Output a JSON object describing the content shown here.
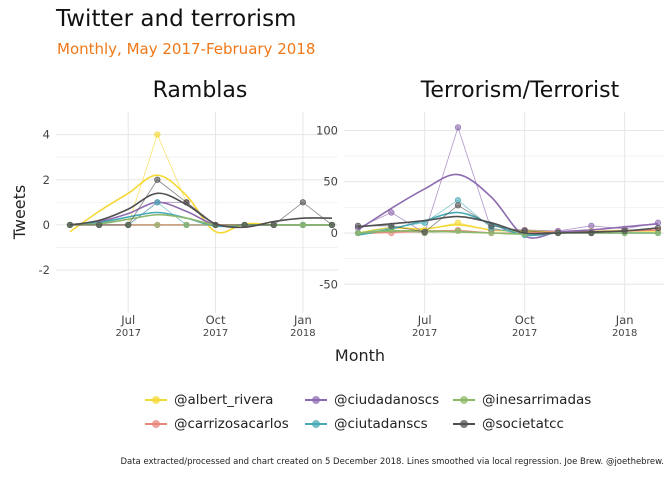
{
  "title": "Twitter and terrorism",
  "subtitle": "Monthly, May 2017-February 2018",
  "caption": "Data extracted/processed and chart created on 5 December 2018. Lines smoothed via local regression. Joe Brew. @joethebrew.",
  "colors": {
    "@albert_rivera": "#f5d832",
    "@carrizosacarlos": "#e8877d",
    "@ciudadanoscs": "#8e6bb0",
    "@ciutadanscs": "#46a9b5",
    "@inesarrimadas": "#8cb86a",
    "@societatcc": "#505050"
  },
  "legend": {
    "items": [
      {
        "label": "@albert_rivera",
        "color": "#f5d832"
      },
      {
        "label": "@ciudadanoscs",
        "color": "#8e6bb0"
      },
      {
        "label": "@inesarrimadas",
        "color": "#8cb86a"
      },
      {
        "label": "@carrizosacarlos",
        "color": "#e8877d"
      },
      {
        "label": "@ciutadanscs",
        "color": "#46a9b5"
      },
      {
        "label": "@societatcc",
        "color": "#505050"
      }
    ]
  },
  "chart_data": [
    {
      "type": "line",
      "title": "Ramblas",
      "xlabel": "Month",
      "ylabel": "Tweets",
      "x": [
        "2017-05",
        "2017-06",
        "2017-07",
        "2017-08",
        "2017-09",
        "2017-10",
        "2017-11",
        "2017-12",
        "2018-01",
        "2018-02"
      ],
      "xticks": [
        {
          "label": "Jul",
          "year": "2017",
          "x": "2017-07"
        },
        {
          "label": "Oct",
          "year": "2017",
          "x": "2017-10"
        },
        {
          "label": "Jan",
          "year": "2018",
          "x": "2018-01"
        }
      ],
      "yticks": [
        -2,
        0,
        2,
        4
      ],
      "ylim": [
        -3.9,
        5.0
      ],
      "grid": true,
      "series": [
        {
          "name": "@albert_rivera",
          "values": [
            0,
            0,
            0,
            4,
            1,
            0,
            0,
            0,
            0,
            0
          ],
          "smooth": [
            -0.3,
            0.6,
            1.4,
            2.2,
            1.3,
            -0.3,
            0.05,
            0.0,
            0.0,
            0.0
          ]
        },
        {
          "name": "@carrizosacarlos",
          "values": [
            0,
            0,
            0,
            0,
            0,
            0,
            0,
            0,
            0,
            0
          ],
          "smooth": [
            0,
            0,
            0,
            0,
            0,
            0,
            0,
            0,
            0,
            0
          ]
        },
        {
          "name": "@ciudadanoscs",
          "values": [
            0,
            0,
            0,
            1,
            1,
            0,
            0,
            0,
            0,
            0
          ],
          "smooth": [
            0.0,
            0.15,
            0.5,
            1.0,
            0.6,
            0.0,
            0.0,
            0.0,
            0.0,
            0.0
          ]
        },
        {
          "name": "@ciutadanscs",
          "values": [
            0,
            0,
            0,
            1,
            0,
            0,
            0,
            0,
            0,
            0
          ],
          "smooth": [
            0.0,
            0.1,
            0.35,
            0.55,
            0.3,
            -0.05,
            0.0,
            0.0,
            0.0,
            0.0
          ]
        },
        {
          "name": "@inesarrimadas",
          "values": [
            0,
            0,
            0,
            0,
            0,
            0,
            0,
            0,
            0,
            0
          ],
          "smooth": [
            0.0,
            0.05,
            0.25,
            0.45,
            0.3,
            0.0,
            0.0,
            0.0,
            0.0,
            0.0
          ]
        },
        {
          "name": "@societatcc",
          "values": [
            0,
            0,
            0,
            2,
            1,
            0,
            0,
            0,
            1,
            0
          ],
          "smooth": [
            0.0,
            0.2,
            0.7,
            1.4,
            0.9,
            0.05,
            -0.1,
            0.15,
            0.3,
            0.3
          ]
        }
      ]
    },
    {
      "type": "line",
      "title": "Terrorism/Terrorist",
      "xlabel": "Month",
      "ylabel": "Tweets",
      "x": [
        "2017-05",
        "2017-06",
        "2017-07",
        "2017-08",
        "2017-09",
        "2017-10",
        "2017-11",
        "2017-12",
        "2018-01",
        "2018-02"
      ],
      "xticks": [
        {
          "label": "Jul",
          "year": "2017",
          "x": "2017-07"
        },
        {
          "label": "Oct",
          "year": "2017",
          "x": "2017-10"
        },
        {
          "label": "Jan",
          "year": "2018",
          "x": "2018-01"
        }
      ],
      "yticks": [
        -50,
        0,
        50,
        100
      ],
      "ylim": [
        -78,
        118
      ],
      "grid": true,
      "series": [
        {
          "name": "@albert_rivera",
          "values": [
            0,
            5,
            3,
            10,
            2,
            3,
            1,
            2,
            3,
            2
          ],
          "smooth": [
            0,
            5,
            4,
            8,
            3,
            2,
            1,
            1,
            2,
            2
          ]
        },
        {
          "name": "@carrizosacarlos",
          "values": [
            0,
            0,
            1,
            3,
            0,
            0,
            1,
            1,
            2,
            3
          ],
          "smooth": [
            -1,
            1,
            2,
            2,
            0,
            0,
            1,
            1,
            2,
            3
          ]
        },
        {
          "name": "@ciudadanoscs",
          "values": [
            5,
            20,
            0,
            103,
            3,
            3,
            2,
            7,
            4,
            10
          ],
          "smooth": [
            3,
            24,
            43,
            57,
            35,
            -3,
            1,
            3,
            6,
            9
          ]
        },
        {
          "name": "@ciutadanscs",
          "values": [
            0,
            5,
            10,
            32,
            5,
            -2,
            0,
            0,
            0,
            0
          ],
          "smooth": [
            -2,
            4,
            12,
            20,
            9,
            -2,
            0,
            0,
            0,
            0
          ]
        },
        {
          "name": "@inesarrimadas",
          "values": [
            0,
            3,
            0,
            2,
            0,
            -1,
            0,
            0,
            0,
            0
          ],
          "smooth": [
            0,
            2,
            2,
            1,
            0,
            -1,
            0,
            0,
            0,
            0
          ]
        },
        {
          "name": "@societatcc",
          "values": [
            7,
            7,
            1,
            27,
            7,
            2,
            0,
            0,
            2,
            5
          ],
          "smooth": [
            6,
            9,
            12,
            16,
            10,
            0,
            0,
            1,
            2,
            5
          ]
        }
      ]
    }
  ]
}
